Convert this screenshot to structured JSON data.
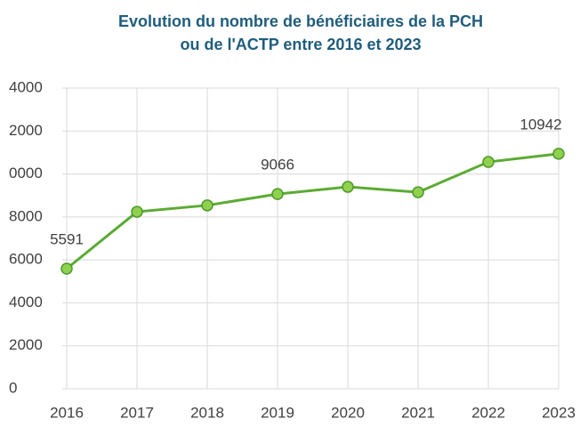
{
  "chart_data": {
    "type": "line",
    "title": [
      "Evolution du nombre de bénéficiaires de la PCH",
      "ou de l'ACTP entre 2016 et 2023"
    ],
    "categories": [
      "2016",
      "2017",
      "2018",
      "2019",
      "2020",
      "2021",
      "2022",
      "2023"
    ],
    "values": [
      5591,
      8240,
      8540,
      9066,
      9400,
      9150,
      10560,
      10942
    ],
    "value_labels": [
      "5591",
      null,
      null,
      "9066",
      null,
      null,
      null,
      "10942"
    ],
    "color": "#5aab33",
    "ylim": [
      0,
      14000
    ],
    "yticks": [
      0,
      {
        "value": 2000,
        "label": "2000"
      },
      {
        "value": 4000,
        "label": "4000"
      },
      {
        "value": 6000,
        "label": "6000"
      },
      {
        "value": 8000,
        "label": "8000"
      },
      {
        "value": 10000,
        "label": "0000"
      },
      {
        "value": 12000,
        "label": "2000"
      },
      {
        "value": 14000,
        "label": "4000"
      }
    ],
    "grid": true
  }
}
